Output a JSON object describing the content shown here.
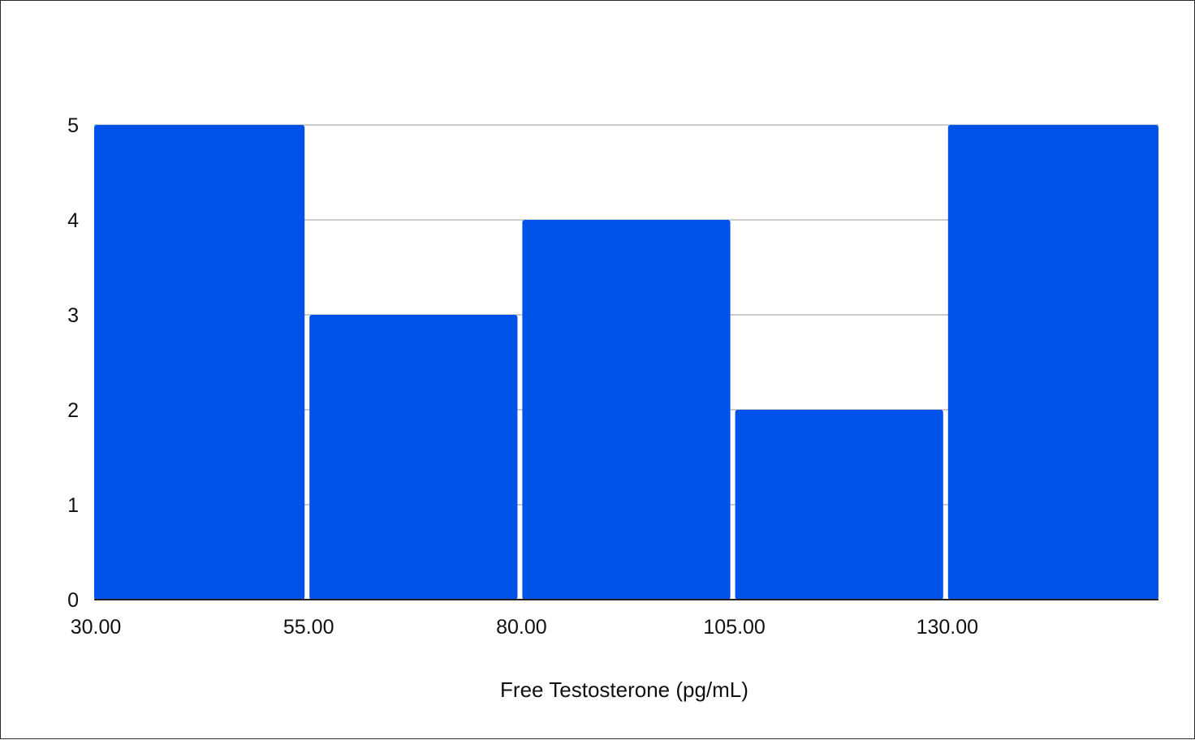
{
  "chart_data": {
    "type": "bar",
    "subtype": "histogram",
    "title": "",
    "xlabel": "Free Testosterone (pg/mL)",
    "ylabel": "",
    "bins": [
      {
        "start": 30,
        "end": 55,
        "count": 5
      },
      {
        "start": 55,
        "end": 80,
        "count": 3
      },
      {
        "start": 80,
        "end": 105,
        "count": 4
      },
      {
        "start": 105,
        "end": 130,
        "count": 2
      },
      {
        "start": 130,
        "end": 155,
        "count": 5
      }
    ],
    "x_ticks": [
      "30.00",
      "55.00",
      "80.00",
      "105.00",
      "130.00"
    ],
    "x_tick_values": [
      30,
      55,
      80,
      105,
      130
    ],
    "y_ticks": [
      0,
      1,
      2,
      3,
      4,
      5
    ],
    "xlim": [
      30,
      155
    ],
    "ylim": [
      0,
      5
    ],
    "grid": "horizontal",
    "legend": "none",
    "colors": {
      "bar": "#0052e9",
      "grid": "#cccccc",
      "axis": "#222222"
    }
  }
}
